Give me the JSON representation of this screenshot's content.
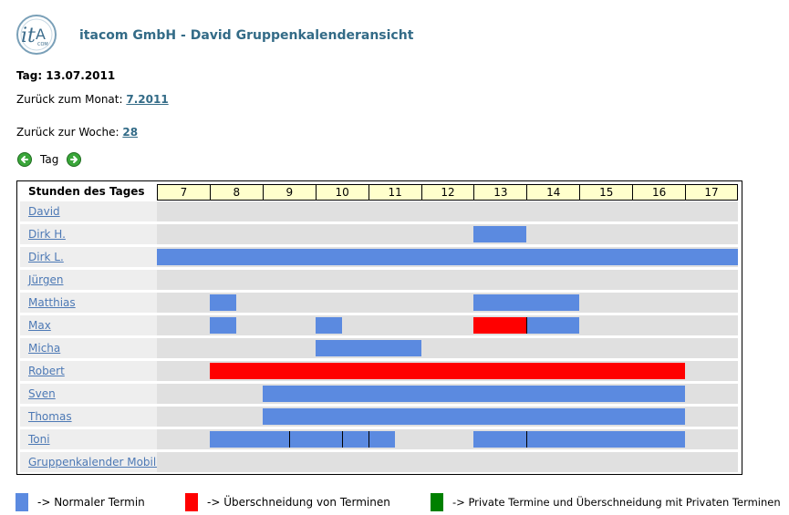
{
  "header": {
    "logo_text": "itA",
    "logo_subtext": "COM",
    "title": "itacom GmbH - David Gruppenkalenderansicht"
  },
  "day": {
    "heading": "Tag: 13.07.2011",
    "back_month_label": "Zurück zum Monat:",
    "back_month_link": "7.2011",
    "back_week_label": "Zurück zur Woche:",
    "back_week_link": "28",
    "nav_label": "Tag"
  },
  "grid": {
    "header_label": "Stunden des Tages",
    "hours": [
      "7",
      "8",
      "9",
      "10",
      "11",
      "12",
      "13",
      "14",
      "15",
      "16",
      "17"
    ],
    "start_hour": 7,
    "end_hour": 18,
    "rows": [
      {
        "name": "David",
        "events": []
      },
      {
        "name": "Dirk H.",
        "events": [
          {
            "from": 13,
            "to": 14,
            "type": "normal"
          }
        ]
      },
      {
        "name": "Dirk L.",
        "events": [
          {
            "from": 7,
            "to": 18,
            "type": "normal"
          }
        ]
      },
      {
        "name": "Jürgen",
        "events": []
      },
      {
        "name": "Matthias",
        "events": [
          {
            "from": 8,
            "to": 8.5,
            "type": "normal"
          },
          {
            "from": 13,
            "to": 15,
            "type": "normal"
          }
        ]
      },
      {
        "name": "Max",
        "events": [
          {
            "from": 8,
            "to": 8.5,
            "type": "normal"
          },
          {
            "from": 10,
            "to": 10.5,
            "type": "normal"
          },
          {
            "from": 13,
            "to": 14,
            "type": "overlap"
          },
          {
            "from": 14,
            "to": 15,
            "type": "normal"
          }
        ]
      },
      {
        "name": "Micha",
        "events": [
          {
            "from": 10,
            "to": 12,
            "type": "normal"
          }
        ]
      },
      {
        "name": "Robert",
        "events": [
          {
            "from": 8,
            "to": 17,
            "type": "overlap"
          }
        ]
      },
      {
        "name": "Sven",
        "events": [
          {
            "from": 9,
            "to": 17,
            "type": "normal"
          }
        ]
      },
      {
        "name": "Thomas",
        "events": [
          {
            "from": 9,
            "to": 17,
            "type": "normal"
          }
        ]
      },
      {
        "name": "Toni",
        "events": [
          {
            "from": 8,
            "to": 9.5,
            "type": "normal"
          },
          {
            "from": 9.5,
            "to": 10.5,
            "type": "normal"
          },
          {
            "from": 10.5,
            "to": 11,
            "type": "normal"
          },
          {
            "from": 11,
            "to": 11.5,
            "type": "normal"
          },
          {
            "from": 13,
            "to": 14,
            "type": "normal"
          },
          {
            "from": 14,
            "to": 17,
            "type": "normal"
          }
        ]
      },
      {
        "name": "Gruppenkalender Mobile",
        "events": []
      }
    ]
  },
  "legend": [
    {
      "label": "-> Normaler Termin",
      "color": "#5b8ae0"
    },
    {
      "label": "-> Überschneidung von Terminen",
      "color": "#ff0000"
    },
    {
      "label": "-> Private Termine und Überschneidung mit Privaten Terminen",
      "color": "#008000"
    }
  ],
  "colors": {
    "normal": "#5b8ae0",
    "overlap": "#ff0000",
    "private": "#008000",
    "title": "#336b87",
    "link": "#4d79b5"
  }
}
